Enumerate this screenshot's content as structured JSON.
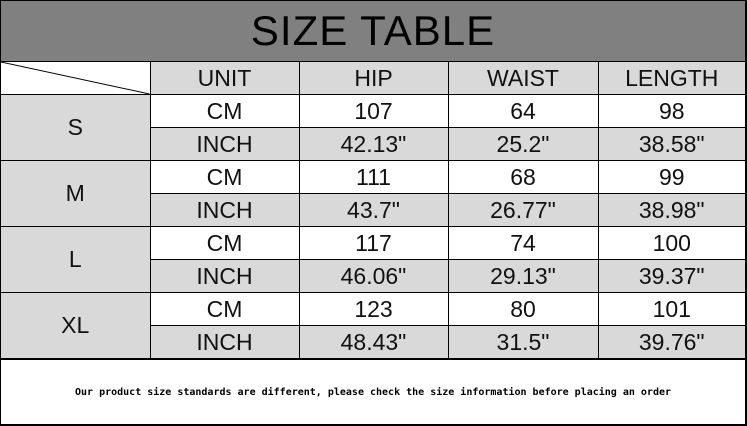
{
  "title": "SIZE TABLE",
  "headers": [
    "UNIT",
    "HIP",
    "WAIST",
    "LENGTH"
  ],
  "rows": [
    {
      "size": "S",
      "cm": [
        "CM",
        "107",
        "64",
        "98"
      ],
      "inch": [
        "INCH",
        "42.13\"",
        "25.2\"",
        "38.58\""
      ]
    },
    {
      "size": "M",
      "cm": [
        "CM",
        "111",
        "68",
        "99"
      ],
      "inch": [
        "INCH",
        "43.7\"",
        "26.77\"",
        "38.98\""
      ]
    },
    {
      "size": "L",
      "cm": [
        "CM",
        "117",
        "74",
        "100"
      ],
      "inch": [
        "INCH",
        "46.06\"",
        "29.13\"",
        "39.37\""
      ]
    },
    {
      "size": "XL",
      "cm": [
        "CM",
        "123",
        "80",
        "101"
      ],
      "inch": [
        "INCH",
        "48.43\"",
        "31.5\"",
        "39.76\""
      ]
    }
  ],
  "note": "Our product size standards are different, please check the size information before placing an order",
  "colors": {
    "title_bg": "#808080",
    "shade": "#d9d9d9"
  }
}
